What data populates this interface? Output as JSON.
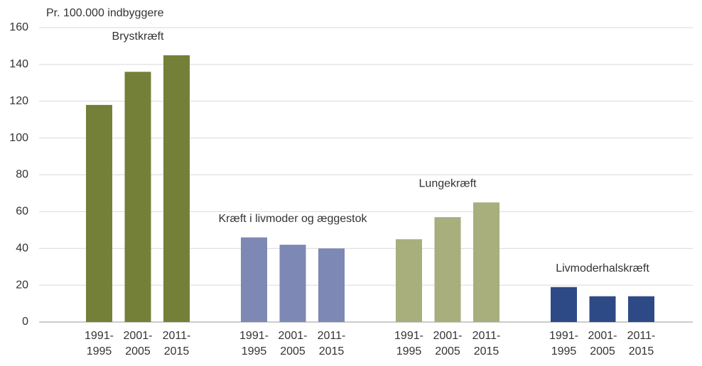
{
  "chart_data": {
    "type": "bar",
    "y_label": "Pr. 100.000 indbyggere",
    "categories": [
      "1991-1995",
      "2001-2005",
      "2011-2015"
    ],
    "series": [
      {
        "name": "Brystkræft",
        "color": "#748038",
        "values": [
          118,
          136,
          145
        ]
      },
      {
        "name": "Kræft i livmoder og æggestok",
        "color": "#7d88b4",
        "values": [
          46,
          42,
          40
        ]
      },
      {
        "name": "Lungekræft",
        "color": "#a8ae7c",
        "values": [
          45,
          57,
          65
        ]
      },
      {
        "name": "Livmoderhalskræft",
        "color": "#2e4a86",
        "values": [
          19,
          14,
          14
        ]
      }
    ],
    "ylim": [
      0,
      160
    ],
    "yticks": [
      0,
      20,
      40,
      60,
      80,
      100,
      120,
      140,
      160
    ],
    "grid": true
  }
}
